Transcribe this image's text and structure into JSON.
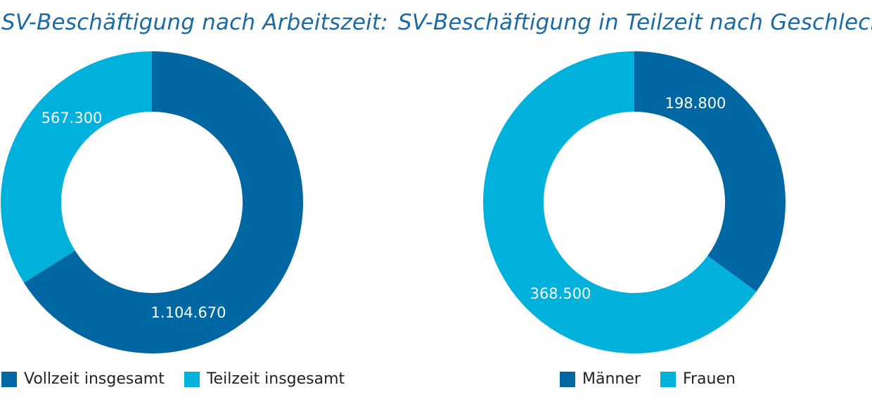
{
  "colors": {
    "dark": "#0067a3",
    "light": "#00b1dc"
  },
  "chart_data": [
    {
      "type": "pie",
      "title": "SV-Beschäftigung nach Arbeitszeit:",
      "categories": [
        "Vollzeit insgesamt",
        "Teilzeit insgesamt"
      ],
      "values": [
        1104670,
        567300
      ],
      "value_labels": [
        "1.104.670",
        "567.300"
      ],
      "colors": [
        "#0067a3",
        "#00b1dc"
      ],
      "legend": "bottom"
    },
    {
      "type": "pie",
      "title": "SV-Beschäftigung in Teilzeit nach Geschlecht:",
      "categories": [
        "Männer",
        "Frauen"
      ],
      "values": [
        198800,
        368500
      ],
      "value_labels": [
        "198.800",
        "368.500"
      ],
      "colors": [
        "#0067a3",
        "#00b1dc"
      ],
      "legend": "bottom"
    }
  ]
}
